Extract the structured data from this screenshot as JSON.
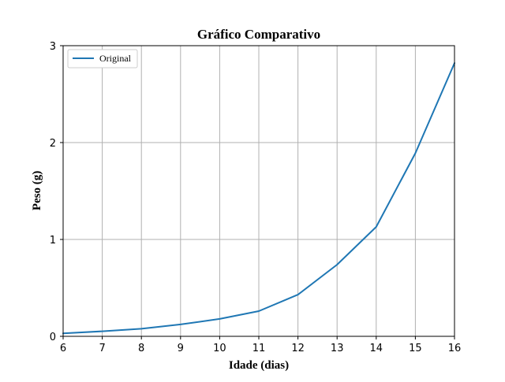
{
  "chart_data": {
    "type": "line",
    "title": "Gráfico Comparativo",
    "xlabel": "Idade (dias)",
    "ylabel": "Peso (g)",
    "xlim": [
      6,
      16
    ],
    "ylim": [
      0,
      3
    ],
    "xticks": [
      6,
      7,
      8,
      9,
      10,
      11,
      12,
      13,
      14,
      15,
      16
    ],
    "yticks": [
      0,
      1,
      2,
      3
    ],
    "grid": true,
    "legend_position": "top-left",
    "series": [
      {
        "name": "Original",
        "color": "#1f77b4",
        "x": [
          6,
          7,
          8,
          9,
          10,
          11,
          12,
          13,
          14,
          15,
          16
        ],
        "y": [
          0.03,
          0.052,
          0.078,
          0.123,
          0.18,
          0.26,
          0.43,
          0.74,
          1.13,
          1.89,
          2.82
        ]
      }
    ]
  }
}
